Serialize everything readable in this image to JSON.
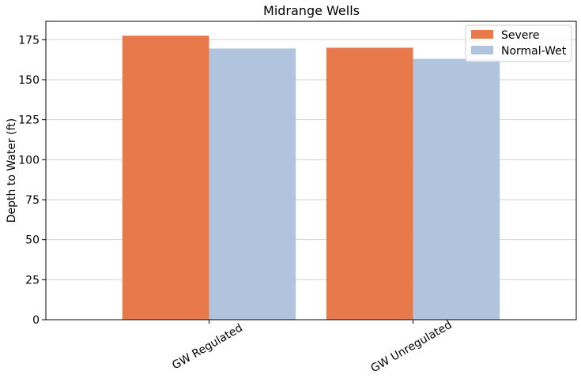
{
  "chart_data": {
    "type": "bar",
    "title": "Midrange Wells",
    "xlabel": "",
    "ylabel": "Depth to Water (ft)",
    "categories": [
      "GW Regulated",
      "GW Unregulated"
    ],
    "series": [
      {
        "name": "Severe",
        "color": "#e8794a",
        "values": [
          177.5,
          170.0
        ]
      },
      {
        "name": "Normal-Wet",
        "color": "#b0c4de",
        "values": [
          169.5,
          163.0
        ]
      }
    ],
    "ylim": [
      0,
      186.5
    ],
    "yticks": [
      0,
      25,
      50,
      75,
      100,
      125,
      150,
      175
    ],
    "grid": "y",
    "legend_position": "top-right"
  }
}
